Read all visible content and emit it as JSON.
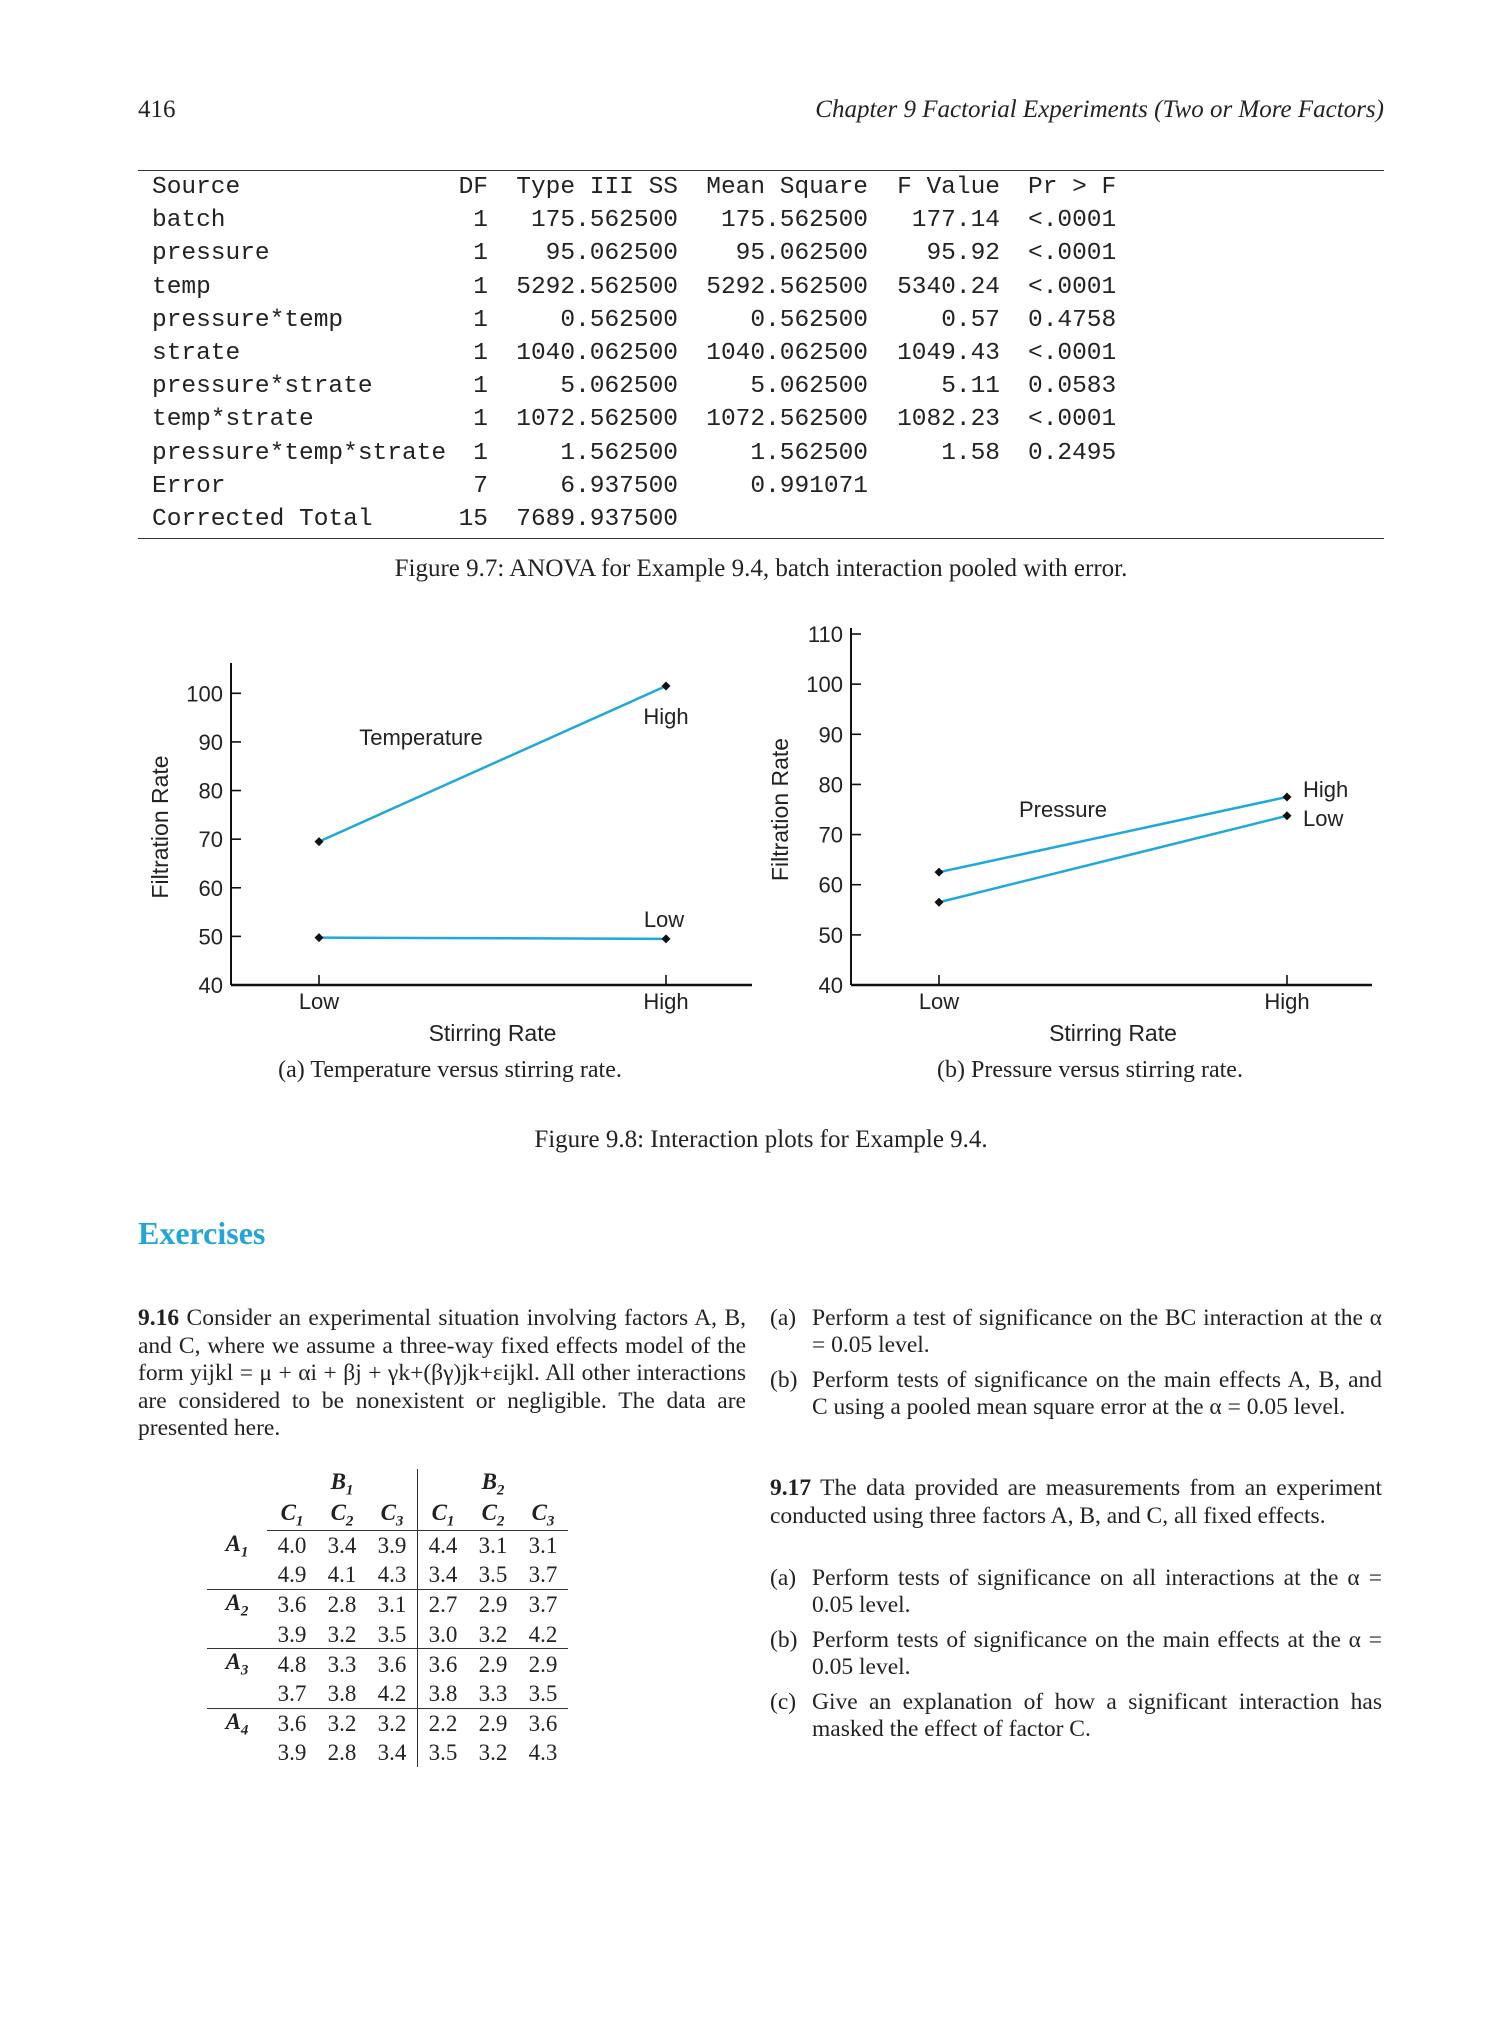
{
  "header": {
    "page_number": "416",
    "chapter_title": "Chapter 9  Factorial Experiments (Two or More Factors)"
  },
  "anova": {
    "columns": [
      "Source",
      "DF",
      "Type III SS",
      "Mean Square",
      "F Value",
      "Pr > F"
    ],
    "rows": [
      [
        "batch",
        "1",
        "175.562500",
        "175.562500",
        "177.14",
        "<.0001"
      ],
      [
        "pressure",
        "1",
        "95.062500",
        "95.062500",
        "95.92",
        "<.0001"
      ],
      [
        "temp",
        "1",
        "5292.562500",
        "5292.562500",
        "5340.24",
        "<.0001"
      ],
      [
        "pressure*temp",
        "1",
        "0.562500",
        "0.562500",
        "0.57",
        "0.4758"
      ],
      [
        "strate",
        "1",
        "1040.062500",
        "1040.062500",
        "1049.43",
        "<.0001"
      ],
      [
        "pressure*strate",
        "1",
        "5.062500",
        "5.062500",
        "5.11",
        "0.0583"
      ],
      [
        "temp*strate",
        "1",
        "1072.562500",
        "1072.562500",
        "1082.23",
        "<.0001"
      ],
      [
        "pressure*temp*strate",
        "1",
        "1.562500",
        "1.562500",
        "1.58",
        "0.2495"
      ],
      [
        "Error",
        "7",
        "6.937500",
        "0.991071",
        "",
        ""
      ],
      [
        "Corrected Total",
        "15",
        "7689.937500",
        "",
        "",
        ""
      ]
    ],
    "caption": "Figure 9.7: ANOVA for Example 9.4, batch interaction pooled with error."
  },
  "chart_data": [
    {
      "type": "line",
      "categories": [
        "Low",
        "High"
      ],
      "series": [
        {
          "name": "High",
          "values": [
            69.5,
            101.5
          ]
        },
        {
          "name": "Low",
          "values": [
            49.75,
            49.5
          ]
        }
      ],
      "xlabel": "Stirring Rate",
      "ylabel": "Filtration Rate",
      "ylim": [
        40,
        105
      ],
      "yticks": [
        40,
        50,
        60,
        70,
        80,
        90,
        100
      ],
      "annotation": "Temperature",
      "line_color": "#1fa8db",
      "caption": "(a) Temperature versus stirring rate."
    },
    {
      "type": "line",
      "categories": [
        "Low",
        "High"
      ],
      "series": [
        {
          "name": "High",
          "values": [
            62.5,
            77.5
          ]
        },
        {
          "name": "Low",
          "values": [
            56.5,
            73.75
          ]
        }
      ],
      "xlabel": "Stirring Rate",
      "ylabel": "Filtration Rate",
      "ylim": [
        40,
        110
      ],
      "yticks": [
        40,
        50,
        60,
        70,
        80,
        90,
        100,
        110
      ],
      "annotation": "Pressure",
      "line_color": "#1fa8db",
      "caption": "(b) Pressure versus stirring rate."
    }
  ],
  "figure_caption": "Figure 9.8: Interaction plots for Example 9.4.",
  "exercises": {
    "heading": "Exercises",
    "ex916": {
      "number": "9.16",
      "text": "Consider an experimental situation involving factors A, B, and C, where we assume a three-way fixed effects model of the form yijkl = μ + αi + βj + γk+(βγ)jk+εijkl. All other interactions are considered to be nonexistent or negligible. The data are presented here.",
      "table": {
        "b_headers": [
          "B1",
          "B2"
        ],
        "c_headers": [
          "C1",
          "C2",
          "C3",
          "C1",
          "C2",
          "C3"
        ],
        "groups": [
          {
            "label": "A1",
            "rows": [
              [
                "4.0",
                "3.4",
                "3.9",
                "4.4",
                "3.1",
                "3.1"
              ],
              [
                "4.9",
                "4.1",
                "4.3",
                "3.4",
                "3.5",
                "3.7"
              ]
            ]
          },
          {
            "label": "A2",
            "rows": [
              [
                "3.6",
                "2.8",
                "3.1",
                "2.7",
                "2.9",
                "3.7"
              ],
              [
                "3.9",
                "3.2",
                "3.5",
                "3.0",
                "3.2",
                "4.2"
              ]
            ]
          },
          {
            "label": "A3",
            "rows": [
              [
                "4.8",
                "3.3",
                "3.6",
                "3.6",
                "2.9",
                "2.9"
              ],
              [
                "3.7",
                "3.8",
                "4.2",
                "3.8",
                "3.3",
                "3.5"
              ]
            ]
          },
          {
            "label": "A4",
            "rows": [
              [
                "3.6",
                "3.2",
                "3.2",
                "2.2",
                "2.9",
                "3.6"
              ],
              [
                "3.9",
                "2.8",
                "3.4",
                "3.5",
                "3.2",
                "4.3"
              ]
            ]
          }
        ]
      },
      "parts": [
        {
          "label": "(a)",
          "text": "Perform a test of significance on the BC interaction at the α = 0.05 level."
        },
        {
          "label": "(b)",
          "text": "Perform tests of significance on the main effects A, B, and C using a pooled mean square error at the α = 0.05 level."
        }
      ]
    },
    "ex917": {
      "number": "9.17",
      "text": "The data provided are measurements from an experiment conducted using three factors A, B, and C, all fixed effects.",
      "parts": [
        {
          "label": "(a)",
          "text": "Perform tests of significance on all interactions at the α = 0.05 level."
        },
        {
          "label": "(b)",
          "text": "Perform tests of significance on the main effects at the α = 0.05 level."
        },
        {
          "label": "(c)",
          "text": "Give an explanation of how a significant interaction has masked the effect of factor C."
        }
      ]
    }
  }
}
